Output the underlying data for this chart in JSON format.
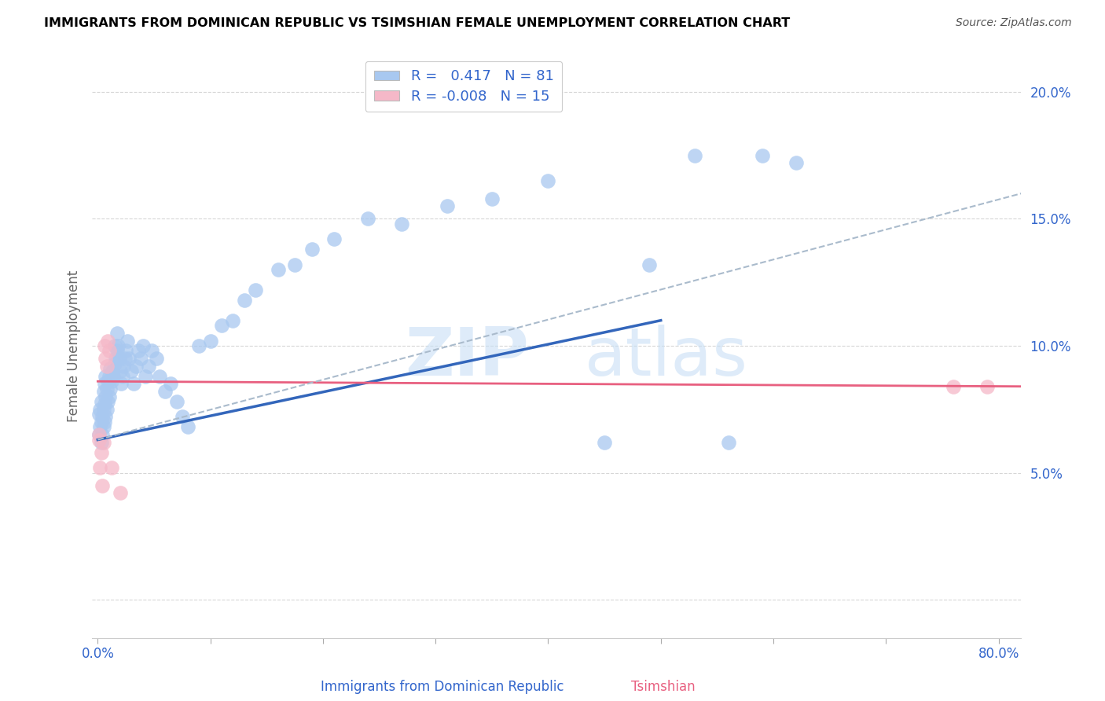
{
  "title": "IMMIGRANTS FROM DOMINICAN REPUBLIC VS TSIMSHIAN FEMALE UNEMPLOYMENT CORRELATION CHART",
  "source": "Source: ZipAtlas.com",
  "ylabel": "Female Unemployment",
  "color_blue": "#a8c8f0",
  "color_pink": "#f5b8c8",
  "line_blue": "#3366bb",
  "line_pink": "#e86080",
  "line_dashed": "#aabbcc",
  "xlim": [
    -0.005,
    0.82
  ],
  "ylim": [
    -0.015,
    0.215
  ],
  "x_tick_positions": [
    0.0,
    0.1,
    0.2,
    0.3,
    0.4,
    0.5,
    0.6,
    0.7,
    0.8
  ],
  "x_tick_labels": [
    "0.0%",
    "",
    "",
    "",
    "",
    "",
    "",
    "",
    "80.0%"
  ],
  "y_tick_positions": [
    0.0,
    0.05,
    0.1,
    0.15,
    0.2
  ],
  "y_tick_labels": [
    "",
    "5.0%",
    "10.0%",
    "15.0%",
    "20.0%"
  ],
  "blue_line_x0": 0.0,
  "blue_line_x1": 0.5,
  "blue_line_y0": 0.063,
  "blue_line_y1": 0.11,
  "pink_line_x0": 0.0,
  "pink_line_x1": 0.82,
  "pink_line_y0": 0.086,
  "pink_line_y1": 0.084,
  "dashed_line_x0": 0.0,
  "dashed_line_x1": 0.82,
  "dashed_line_y0": 0.063,
  "dashed_line_y1": 0.16,
  "blue_scatter_x": [
    0.001,
    0.001,
    0.002,
    0.002,
    0.003,
    0.003,
    0.003,
    0.004,
    0.004,
    0.005,
    0.005,
    0.005,
    0.006,
    0.006,
    0.006,
    0.007,
    0.007,
    0.007,
    0.008,
    0.008,
    0.009,
    0.009,
    0.01,
    0.01,
    0.011,
    0.011,
    0.012,
    0.013,
    0.014,
    0.015,
    0.015,
    0.016,
    0.017,
    0.017,
    0.018,
    0.019,
    0.02,
    0.021,
    0.022,
    0.023,
    0.024,
    0.025,
    0.026,
    0.028,
    0.03,
    0.032,
    0.034,
    0.036,
    0.038,
    0.04,
    0.042,
    0.045,
    0.048,
    0.052,
    0.055,
    0.06,
    0.065,
    0.07,
    0.075,
    0.08,
    0.09,
    0.1,
    0.11,
    0.12,
    0.13,
    0.14,
    0.16,
    0.175,
    0.19,
    0.21,
    0.24,
    0.27,
    0.31,
    0.35,
    0.4,
    0.45,
    0.49,
    0.53,
    0.56,
    0.59,
    0.62
  ],
  "blue_scatter_y": [
    0.065,
    0.073,
    0.068,
    0.075,
    0.062,
    0.07,
    0.078,
    0.065,
    0.072,
    0.068,
    0.075,
    0.082,
    0.07,
    0.077,
    0.085,
    0.072,
    0.08,
    0.088,
    0.075,
    0.083,
    0.078,
    0.086,
    0.08,
    0.088,
    0.083,
    0.091,
    0.086,
    0.09,
    0.088,
    0.093,
    0.1,
    0.095,
    0.098,
    0.105,
    0.1,
    0.095,
    0.09,
    0.085,
    0.088,
    0.092,
    0.095,
    0.098,
    0.102,
    0.095,
    0.09,
    0.085,
    0.092,
    0.098,
    0.095,
    0.1,
    0.088,
    0.092,
    0.098,
    0.095,
    0.088,
    0.082,
    0.085,
    0.078,
    0.072,
    0.068,
    0.1,
    0.102,
    0.108,
    0.11,
    0.118,
    0.122,
    0.13,
    0.132,
    0.138,
    0.142,
    0.15,
    0.148,
    0.155,
    0.158,
    0.165,
    0.062,
    0.132,
    0.175,
    0.062,
    0.175,
    0.172
  ],
  "pink_scatter_x": [
    0.001,
    0.001,
    0.002,
    0.003,
    0.004,
    0.005,
    0.006,
    0.007,
    0.008,
    0.009,
    0.01,
    0.012,
    0.02,
    0.76,
    0.79
  ],
  "pink_scatter_y": [
    0.065,
    0.063,
    0.052,
    0.058,
    0.045,
    0.062,
    0.1,
    0.095,
    0.092,
    0.102,
    0.098,
    0.052,
    0.042,
    0.084,
    0.084
  ],
  "legend_label_blue": "R =   0.417   N = 81",
  "legend_label_pink": "R = -0.008   N = 15",
  "legend_r_blue": "0.417",
  "legend_r_pink": "-0.008",
  "legend_n_blue": "81",
  "legend_n_pink": "15"
}
